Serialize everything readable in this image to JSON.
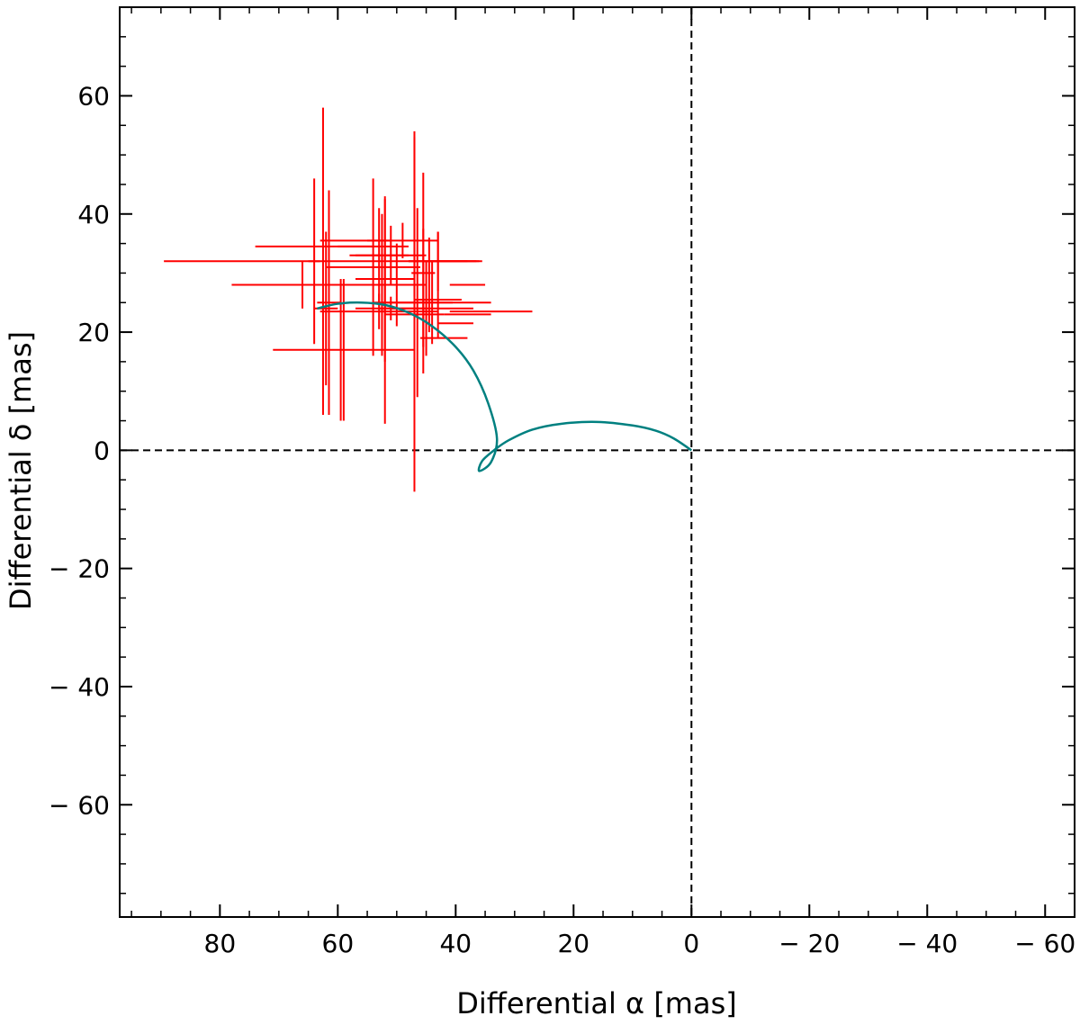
{
  "chart_data": {
    "type": "scatter",
    "xlabel": "Differential α  [mas]",
    "ylabel": "Differential δ  [mas]",
    "xlim": [
      97,
      -65
    ],
    "ylim": [
      -79,
      75
    ],
    "x_ticks": [
      80,
      60,
      40,
      20,
      0,
      -20,
      -40,
      -60
    ],
    "x_tick_labels": [
      "80",
      "60",
      "40",
      "20",
      "0",
      "− 20",
      "− 40",
      "− 60"
    ],
    "y_ticks": [
      60,
      40,
      20,
      0,
      -20,
      -40,
      -60
    ],
    "y_tick_labels": [
      "60",
      "40",
      "20",
      "0",
      "− 20",
      "− 40",
      "− 60"
    ],
    "reference_lines": {
      "x": 0,
      "y": 0,
      "style": "dashed",
      "color": "#000000"
    },
    "colors": {
      "measurements": "#ff0000",
      "model_orbit": "#008080"
    },
    "series": [
      {
        "type": "errorbar",
        "points": [
          {
            "x": 62.5,
            "y": 32,
            "xerr": 27,
            "yerr": 26
          },
          {
            "x": 62,
            "y": 24,
            "xerr": 2,
            "yerr": 13
          },
          {
            "x": 61.5,
            "y": 25,
            "xerr": 2,
            "yerr": 19
          },
          {
            "x": 64,
            "y": 32,
            "xerr": 1,
            "yerr": 14
          },
          {
            "x": 66,
            "y": 28,
            "xerr": 12,
            "yerr": 4
          },
          {
            "x": 64,
            "y": 34.5,
            "xerr": 10,
            "yerr": 0
          },
          {
            "x": 59,
            "y": 17,
            "xerr": 12,
            "yerr": 12
          },
          {
            "x": 59.5,
            "y": 17,
            "xerr": 0,
            "yerr": 12
          },
          {
            "x": 57,
            "y": 35.5,
            "xerr": 6,
            "yerr": 0
          },
          {
            "x": 54,
            "y": 34.5,
            "xerr": 6,
            "yerr": 0
          },
          {
            "x": 54,
            "y": 31,
            "xerr": 8,
            "yerr": 15
          },
          {
            "x": 53,
            "y": 33,
            "xerr": 5,
            "yerr": 8
          },
          {
            "x": 52.5,
            "y": 28,
            "xerr": 6,
            "yerr": 12
          },
          {
            "x": 52,
            "y": 29,
            "xerr": 5,
            "yerr": 14
          },
          {
            "x": 51,
            "y": 33,
            "xerr": 6,
            "yerr": 5
          },
          {
            "x": 50,
            "y": 28,
            "xerr": 5,
            "yerr": 7
          },
          {
            "x": 51,
            "y": 24,
            "xerr": 6,
            "yerr": 2
          },
          {
            "x": 53,
            "y": 23.5,
            "xerr": 10,
            "yerr": 3
          },
          {
            "x": 52,
            "y": 23.5,
            "xerr": 1,
            "yerr": 19
          },
          {
            "x": 49,
            "y": 35.5,
            "xerr": 6,
            "yerr": 3
          },
          {
            "x": 47,
            "y": 40,
            "xerr": 0,
            "yerr": 14
          },
          {
            "x": 47,
            "y": 23,
            "xerr": 5,
            "yerr": 30
          },
          {
            "x": 46.5,
            "y": 25,
            "xerr": 6,
            "yerr": 16
          },
          {
            "x": 45.5,
            "y": 30,
            "xerr": 2,
            "yerr": 17
          },
          {
            "x": 45,
            "y": 24,
            "xerr": 8,
            "yerr": 8
          },
          {
            "x": 44,
            "y": 25,
            "xerr": 10,
            "yerr": 7
          },
          {
            "x": 43,
            "y": 32,
            "xerr": 5,
            "yerr": 5
          },
          {
            "x": 42,
            "y": 32,
            "xerr": 6,
            "yerr": 0
          },
          {
            "x": 40.5,
            "y": 32,
            "xerr": 4,
            "yerr": 0
          },
          {
            "x": 38,
            "y": 28,
            "xerr": 3,
            "yerr": 0
          },
          {
            "x": 34,
            "y": 23.5,
            "xerr": 7,
            "yerr": 0
          },
          {
            "x": 43,
            "y": 25.5,
            "xerr": 4,
            "yerr": 0
          },
          {
            "x": 38,
            "y": 23,
            "xerr": 4,
            "yerr": 0
          },
          {
            "x": 40,
            "y": 21.5,
            "xerr": 3,
            "yerr": 0
          },
          {
            "x": 43,
            "y": 28,
            "xerr": 0,
            "yerr": 9
          },
          {
            "x": 42,
            "y": 19,
            "xerr": 4,
            "yerr": 0
          },
          {
            "x": 44.5,
            "y": 28,
            "xerr": 0,
            "yerr": 8
          },
          {
            "x": 45.5,
            "y": 27.5,
            "xerr": 0,
            "yerr": 10
          }
        ]
      },
      {
        "type": "line",
        "points": [
          [
            63.5,
            24
          ],
          [
            60,
            24.8
          ],
          [
            56,
            25
          ],
          [
            52,
            24.6
          ],
          [
            48,
            23.3
          ],
          [
            44,
            21
          ],
          [
            40,
            17.5
          ],
          [
            37,
            13.5
          ],
          [
            34.5,
            8
          ],
          [
            33,
            2
          ],
          [
            34,
            -2
          ],
          [
            36,
            -3.5
          ],
          [
            35.5,
            -1.8
          ],
          [
            33.5,
            0
          ],
          [
            31,
            1.7
          ],
          [
            27,
            3.5
          ],
          [
            22,
            4.5
          ],
          [
            16,
            4.8
          ],
          [
            10,
            4.2
          ],
          [
            6,
            3.3
          ],
          [
            3,
            2
          ],
          [
            0,
            0
          ]
        ]
      }
    ]
  }
}
